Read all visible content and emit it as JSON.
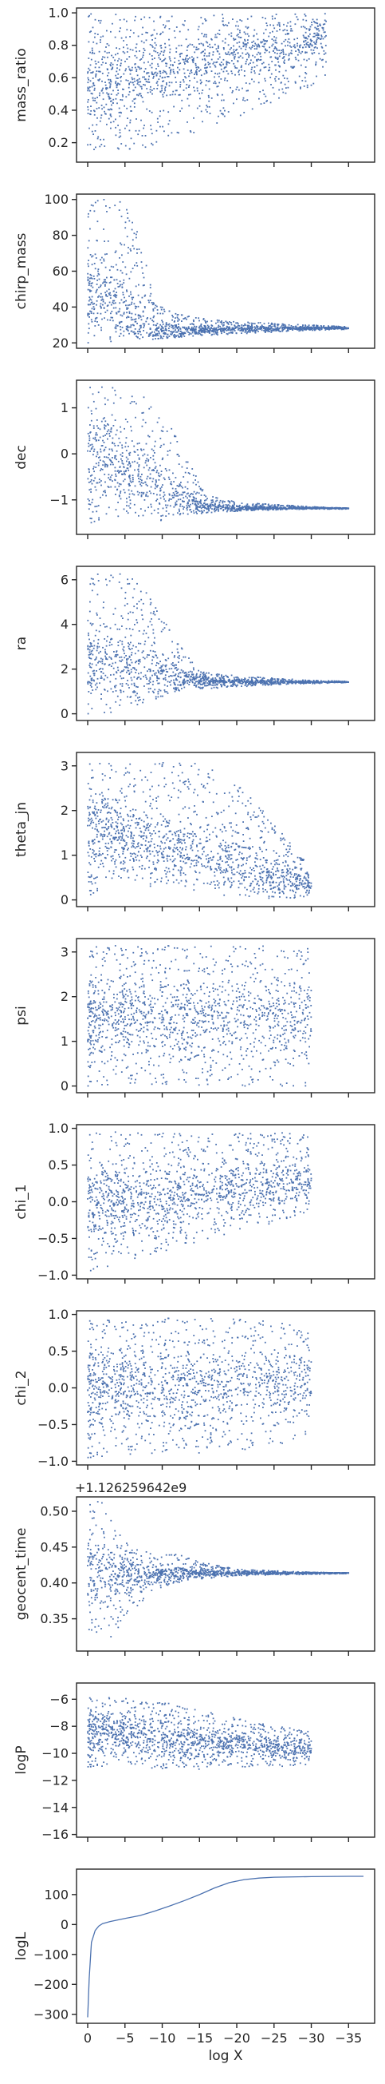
{
  "chart_data": {
    "type": "scatter",
    "shared_x": {
      "label": "log X",
      "range": [
        1.5,
        -38.5
      ],
      "ticks": [
        0,
        -5,
        -10,
        -15,
        -20,
        -25,
        -30,
        -35
      ],
      "tick_labels": [
        "0",
        "−5",
        "−10",
        "−15",
        "−20",
        "−25",
        "−30",
        "−35"
      ]
    },
    "point_color": "#4c72b0",
    "panels": [
      {
        "ylabel": "mass_ratio",
        "ylim": [
          0.08,
          1.03
        ],
        "yticks": [
          0.2,
          0.4,
          0.6,
          0.8,
          1.0
        ],
        "ytick_labels": [
          "0.2",
          "0.4",
          "0.6",
          "0.8",
          "1.0"
        ],
        "offset_text": "",
        "kind": "scatter",
        "envelope": {
          "x": [
            0,
            -3,
            -6,
            -10,
            -15,
            -20,
            -25,
            -30,
            -32
          ],
          "lower": [
            0.13,
            0.13,
            0.15,
            0.2,
            0.27,
            0.35,
            0.45,
            0.55,
            0.62
          ],
          "upper": [
            1.0,
            1.0,
            1.0,
            1.0,
            1.0,
            1.0,
            1.0,
            1.0,
            1.0
          ],
          "center": [
            0.55,
            0.57,
            0.6,
            0.64,
            0.69,
            0.74,
            0.79,
            0.84,
            0.86
          ]
        }
      },
      {
        "ylabel": "chirp_mass",
        "ylim": [
          17,
          103
        ],
        "yticks": [
          20,
          40,
          60,
          80,
          100
        ],
        "ytick_labels": [
          "20",
          "40",
          "60",
          "80",
          "100"
        ],
        "offset_text": "",
        "kind": "scatter",
        "envelope": {
          "x": [
            0,
            -3,
            -5,
            -7,
            -9,
            -12,
            -15,
            -20,
            -25,
            -30,
            -35
          ],
          "lower": [
            20,
            20,
            21,
            22,
            22,
            23,
            24,
            25,
            26,
            27,
            27.5
          ],
          "upper": [
            100,
            100,
            98,
            80,
            42,
            36,
            34,
            32,
            31,
            30,
            29
          ],
          "center": [
            50,
            45,
            38,
            30,
            26,
            26,
            27,
            28,
            28,
            28.2,
            28.2
          ]
        }
      },
      {
        "ylabel": "dec",
        "ylim": [
          -1.75,
          1.6
        ],
        "yticks": [
          -1,
          0,
          1
        ],
        "ytick_labels": [
          "−1",
          "0",
          "1"
        ],
        "offset_text": "",
        "kind": "scatter",
        "envelope": {
          "x": [
            0,
            -3,
            -6,
            -10,
            -13,
            -16,
            -20,
            -25,
            -30,
            -35
          ],
          "lower": [
            -1.5,
            -1.5,
            -1.5,
            -1.45,
            -1.35,
            -1.3,
            -1.25,
            -1.22,
            -1.2,
            -1.2
          ],
          "upper": [
            1.5,
            1.5,
            1.4,
            1.0,
            0.0,
            -0.9,
            -1.05,
            -1.1,
            -1.15,
            -1.18
          ],
          "center": [
            0.0,
            -0.2,
            -0.4,
            -0.7,
            -1.0,
            -1.15,
            -1.18,
            -1.18,
            -1.18,
            -1.18
          ]
        }
      },
      {
        "ylabel": "ra",
        "ylim": [
          -0.3,
          6.6
        ],
        "yticks": [
          0,
          2,
          4,
          6
        ],
        "ytick_labels": [
          "0",
          "2",
          "4",
          "6"
        ],
        "offset_text": "",
        "kind": "scatter",
        "envelope": {
          "x": [
            0,
            -3,
            -6,
            -9,
            -12,
            -15,
            -20,
            -25,
            -30,
            -35
          ],
          "lower": [
            0.0,
            0.0,
            0.2,
            0.6,
            1.0,
            1.1,
            1.2,
            1.3,
            1.35,
            1.4
          ],
          "upper": [
            6.3,
            6.3,
            6.2,
            5.0,
            3.2,
            1.9,
            1.7,
            1.6,
            1.5,
            1.45
          ],
          "center": [
            2.5,
            2.4,
            2.0,
            1.8,
            1.6,
            1.5,
            1.45,
            1.42,
            1.42,
            1.42
          ]
        }
      },
      {
        "ylabel": "theta_jn",
        "ylim": [
          -0.15,
          3.3
        ],
        "yticks": [
          0,
          1,
          2,
          3
        ],
        "ytick_labels": [
          "0",
          "1",
          "2",
          "3"
        ],
        "offset_text": "",
        "kind": "scatter",
        "envelope": {
          "x": [
            0,
            -3,
            -6,
            -10,
            -14,
            -18,
            -22,
            -26,
            -29,
            -30
          ],
          "lower": [
            0.1,
            0.2,
            0.3,
            0.3,
            0.2,
            0.1,
            0.05,
            0.0,
            0.05,
            0.1
          ],
          "upper": [
            3.1,
            3.1,
            3.1,
            3.1,
            3.1,
            2.9,
            2.3,
            1.5,
            0.9,
            0.5
          ],
          "center": [
            1.6,
            1.5,
            1.4,
            1.3,
            1.1,
            0.9,
            0.7,
            0.5,
            0.4,
            0.3
          ]
        }
      },
      {
        "ylabel": "psi",
        "ylim": [
          -0.15,
          3.3
        ],
        "yticks": [
          0,
          1,
          2,
          3
        ],
        "ytick_labels": [
          "0",
          "1",
          "2",
          "3"
        ],
        "offset_text": "",
        "kind": "scatter",
        "envelope": {
          "x": [
            0,
            -10,
            -20,
            -28,
            -30
          ],
          "lower": [
            0.0,
            0.0,
            0.0,
            0.0,
            0.0
          ],
          "upper": [
            3.14,
            3.14,
            3.14,
            3.14,
            3.14
          ],
          "center": [
            1.57,
            1.57,
            1.57,
            1.57,
            1.57
          ]
        }
      },
      {
        "ylabel": "chi_1",
        "ylim": [
          -1.05,
          1.05
        ],
        "yticks": [
          -1.0,
          -0.5,
          0.0,
          0.5,
          1.0
        ],
        "ytick_labels": [
          "−1.0",
          "−0.5",
          "0.0",
          "0.5",
          "1.0"
        ],
        "offset_text": "",
        "kind": "scatter",
        "envelope": {
          "x": [
            0,
            -5,
            -10,
            -15,
            -20,
            -25,
            -30
          ],
          "lower": [
            -0.95,
            -0.85,
            -0.7,
            -0.55,
            -0.4,
            -0.3,
            -0.15
          ],
          "upper": [
            0.95,
            0.95,
            0.95,
            0.95,
            0.95,
            0.95,
            0.9
          ],
          "center": [
            0.0,
            0.05,
            0.1,
            0.15,
            0.2,
            0.25,
            0.3
          ]
        }
      },
      {
        "ylabel": "chi_2",
        "ylim": [
          -1.05,
          1.05
        ],
        "yticks": [
          -1.0,
          -0.5,
          0.0,
          0.5,
          1.0
        ],
        "ytick_labels": [
          "−1.0",
          "−0.5",
          "0.0",
          "0.5",
          "1.0"
        ],
        "offset_text": "",
        "kind": "scatter",
        "envelope": {
          "x": [
            0,
            -5,
            -10,
            -15,
            -20,
            -25,
            -30
          ],
          "lower": [
            -0.95,
            -0.95,
            -0.9,
            -0.9,
            -0.85,
            -0.8,
            -0.6
          ],
          "upper": [
            0.95,
            0.95,
            0.95,
            0.95,
            0.95,
            0.9,
            0.8
          ],
          "center": [
            0.0,
            0.0,
            0.02,
            0.03,
            0.05,
            0.07,
            0.08
          ]
        }
      },
      {
        "ylabel": "geocent_time",
        "ylim": [
          0.305,
          0.52
        ],
        "yticks": [
          0.35,
          0.4,
          0.45,
          0.5
        ],
        "ytick_labels": [
          "0.35",
          "0.40",
          "0.45",
          "0.50"
        ],
        "offset_text": "+1.126259642e9",
        "kind": "scatter",
        "envelope": {
          "x": [
            0,
            -2,
            -4,
            -6,
            -9,
            -12,
            -15,
            -20,
            -25,
            -30,
            -35
          ],
          "lower": [
            0.315,
            0.315,
            0.33,
            0.36,
            0.39,
            0.4,
            0.405,
            0.41,
            0.411,
            0.412,
            0.413
          ],
          "upper": [
            0.515,
            0.515,
            0.47,
            0.45,
            0.44,
            0.44,
            0.43,
            0.42,
            0.417,
            0.415,
            0.414
          ],
          "center": [
            0.42,
            0.42,
            0.415,
            0.413,
            0.413,
            0.414,
            0.414,
            0.414,
            0.414,
            0.414,
            0.414
          ]
        }
      },
      {
        "ylabel": "logP",
        "ylim": [
          -16.2,
          -4.8
        ],
        "yticks": [
          -16,
          -14,
          -12,
          -10,
          -8,
          -6
        ],
        "ytick_labels": [
          "−16",
          "−14",
          "−12",
          "−10",
          "−8",
          "−6"
        ],
        "offset_text": "",
        "kind": "scatter",
        "envelope": {
          "x": [
            0,
            -5,
            -10,
            -15,
            -20,
            -25,
            -30
          ],
          "lower": [
            -11.0,
            -11.0,
            -11.2,
            -11.2,
            -11.0,
            -11.0,
            -10.8
          ],
          "upper": [
            -5.8,
            -5.8,
            -6.2,
            -6.8,
            -7.4,
            -8.0,
            -8.3
          ],
          "center": [
            -8.3,
            -8.5,
            -8.8,
            -9.1,
            -9.3,
            -9.6,
            -9.7
          ]
        }
      },
      {
        "ylabel": "logL",
        "ylim": [
          -330,
          185
        ],
        "yticks": [
          -300,
          -200,
          -100,
          0,
          100
        ],
        "ytick_labels": [
          "−300",
          "−200",
          "−100",
          "0",
          "100"
        ],
        "offset_text": "",
        "kind": "line",
        "line": {
          "x": [
            0,
            -0.2,
            -0.5,
            -1,
            -1.5,
            -2,
            -3,
            -5,
            -7,
            -9,
            -11,
            -13,
            -15,
            -17,
            -19,
            -21,
            -23,
            -25,
            -30,
            -35,
            -37
          ],
          "y": [
            -310,
            -180,
            -60,
            -20,
            -5,
            3,
            10,
            20,
            30,
            45,
            62,
            80,
            100,
            122,
            140,
            150,
            155,
            158,
            160,
            161,
            161
          ]
        }
      }
    ]
  }
}
